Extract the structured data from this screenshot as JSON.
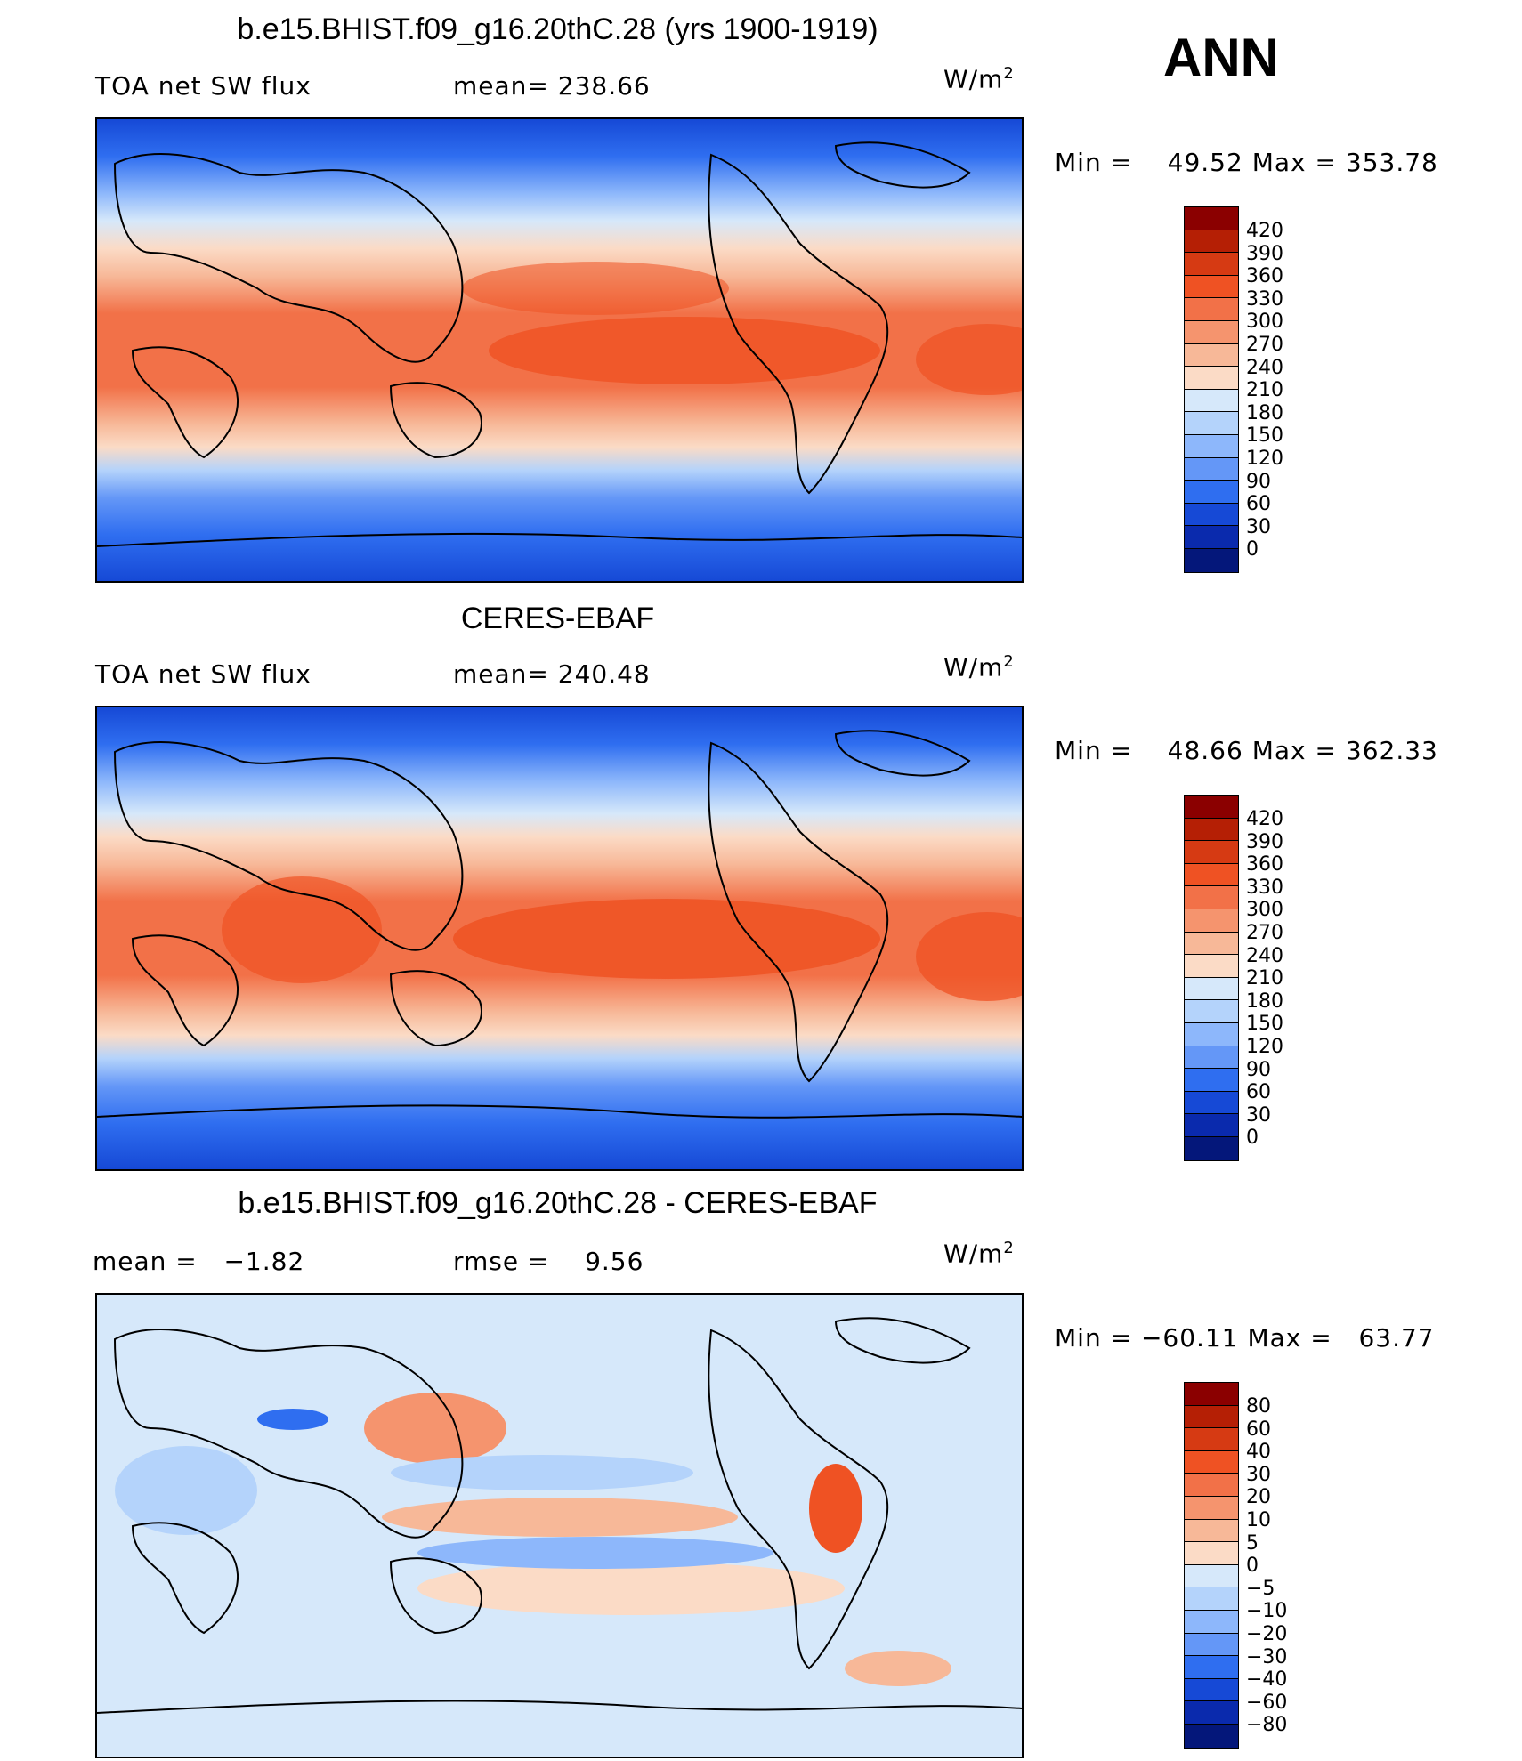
{
  "season": "ANN",
  "panels": [
    {
      "id": "model",
      "title": "b.e15.BHIST.f09_g16.20thC.28 (yrs 1900-1919)",
      "left_label": "TOA net SW flux",
      "center_label": "mean= 238.66",
      "units_base": "W/m",
      "units_exp": "2",
      "min_label": "Min",
      "min_value": "49.52",
      "max_label": "Max",
      "max_value": "353.78",
      "levels": [
        "420",
        "390",
        "360",
        "330",
        "300",
        "270",
        "240",
        "210",
        "180",
        "150",
        "120",
        "90",
        "60",
        "30",
        "0"
      ],
      "colors": [
        "#8b0000",
        "#b51f05",
        "#d63a13",
        "#ef5223",
        "#f27148",
        "#f5946e",
        "#f7b898",
        "#fbdbc6",
        "#d6e8fa",
        "#b4d3fb",
        "#8db7fb",
        "#6497f7",
        "#2f6ef0",
        "#1649d6",
        "#0a2aad",
        "#04177a"
      ]
    },
    {
      "id": "obs",
      "title": "CERES-EBAF",
      "left_label": "TOA net SW flux",
      "center_label": "mean= 240.48",
      "units_base": "W/m",
      "units_exp": "2",
      "min_label": "Min",
      "min_value": "48.66",
      "max_label": "Max",
      "max_value": "362.33",
      "levels": [
        "420",
        "390",
        "360",
        "330",
        "300",
        "270",
        "240",
        "210",
        "180",
        "150",
        "120",
        "90",
        "60",
        "30",
        "0"
      ],
      "colors": [
        "#8b0000",
        "#b51f05",
        "#d63a13",
        "#ef5223",
        "#f27148",
        "#f5946e",
        "#f7b898",
        "#fbdbc6",
        "#d6e8fa",
        "#b4d3fb",
        "#8db7fb",
        "#6497f7",
        "#2f6ef0",
        "#1649d6",
        "#0a2aad",
        "#04177a"
      ]
    },
    {
      "id": "diff",
      "title": "b.e15.BHIST.f09_g16.20thC.28 - CERES-EBAF",
      "left_label": "mean =   −1.82",
      "center_label": "rmse =    9.56",
      "units_base": "W/m",
      "units_exp": "2",
      "min_label": "Min",
      "min_value": "−60.11",
      "max_label": "Max",
      "max_value": "63.77",
      "levels": [
        "80",
        "60",
        "40",
        "30",
        "20",
        "10",
        "5",
        "0",
        "−5",
        "−10",
        "−20",
        "−30",
        "−40",
        "−60",
        "−80"
      ],
      "colors": [
        "#8b0000",
        "#b51f05",
        "#d63a13",
        "#ef5223",
        "#f27148",
        "#f5946e",
        "#f7b898",
        "#fbdbc6",
        "#d6e8fa",
        "#b4d3fb",
        "#8db7fb",
        "#6497f7",
        "#2f6ef0",
        "#1649d6",
        "#0a2aad",
        "#04177a"
      ]
    }
  ]
}
